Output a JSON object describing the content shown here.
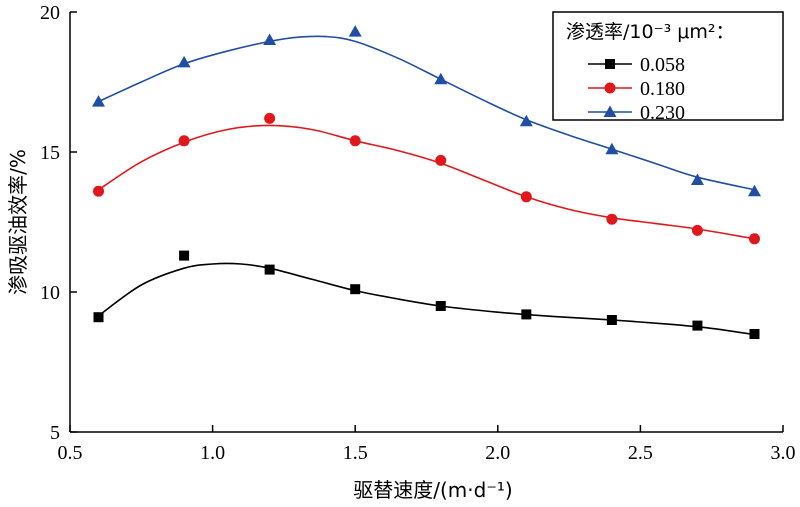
{
  "chart_data": {
    "type": "line",
    "title": "",
    "xlabel": "驱替速度/(m·d⁻¹)",
    "ylabel": "渗吸驱油效率/%",
    "xlim": [
      0.5,
      3.0
    ],
    "ylim": [
      5,
      20
    ],
    "xticks": [
      "0.5",
      "1.0",
      "1.5",
      "2.0",
      "2.5",
      "3.0"
    ],
    "yticks": [
      "5",
      "10",
      "15",
      "20"
    ],
    "legend": {
      "title": "渗透率/10⁻³ μm²：",
      "position": "top-right"
    },
    "grid": false,
    "series": [
      {
        "name": "0.058",
        "color": "#000000",
        "marker": "square",
        "x": [
          0.6,
          0.9,
          1.2,
          1.5,
          1.8,
          2.1,
          2.4,
          2.7,
          2.9
        ],
        "y": [
          9.1,
          11.3,
          10.8,
          10.1,
          9.5,
          9.2,
          9.0,
          8.8,
          8.5
        ],
        "fit_x": [
          0.6,
          0.75,
          0.9,
          1.0,
          1.1,
          1.2,
          1.35,
          1.5,
          1.65,
          1.8,
          2.0,
          2.2,
          2.4,
          2.6,
          2.75,
          2.9
        ],
        "fit_y": [
          9.15,
          10.25,
          10.85,
          11.0,
          11.0,
          10.85,
          10.45,
          10.05,
          9.75,
          9.5,
          9.28,
          9.12,
          9.0,
          8.85,
          8.7,
          8.48
        ]
      },
      {
        "name": "0.180",
        "color": "#e0181c",
        "marker": "circle",
        "x": [
          0.6,
          0.9,
          1.2,
          1.5,
          1.8,
          2.1,
          2.4,
          2.7,
          2.9
        ],
        "y": [
          13.6,
          15.4,
          16.2,
          15.4,
          14.7,
          13.4,
          12.6,
          12.2,
          11.9
        ],
        "fit_x": [
          0.6,
          0.75,
          0.9,
          1.05,
          1.2,
          1.35,
          1.5,
          1.65,
          1.8,
          1.95,
          2.1,
          2.25,
          2.4,
          2.55,
          2.7,
          2.9
        ],
        "fit_y": [
          13.65,
          14.65,
          15.35,
          15.8,
          15.95,
          15.8,
          15.4,
          15.05,
          14.6,
          14.0,
          13.4,
          12.95,
          12.65,
          12.45,
          12.25,
          11.9
        ]
      },
      {
        "name": "0.230",
        "color": "#1f4ea3",
        "marker": "triangle",
        "x": [
          0.6,
          0.9,
          1.2,
          1.5,
          1.8,
          2.1,
          2.4,
          2.7,
          2.9
        ],
        "y": [
          16.8,
          18.2,
          19.0,
          19.3,
          17.6,
          16.1,
          15.1,
          14.0,
          13.6
        ],
        "fit_x": [
          0.6,
          0.75,
          0.9,
          1.05,
          1.2,
          1.3,
          1.4,
          1.5,
          1.65,
          1.8,
          1.95,
          2.1,
          2.25,
          2.4,
          2.55,
          2.7,
          2.9
        ],
        "fit_y": [
          16.8,
          17.5,
          18.15,
          18.6,
          18.95,
          19.1,
          19.12,
          18.95,
          18.35,
          17.6,
          16.85,
          16.15,
          15.6,
          15.1,
          14.6,
          14.1,
          13.65
        ]
      }
    ]
  }
}
